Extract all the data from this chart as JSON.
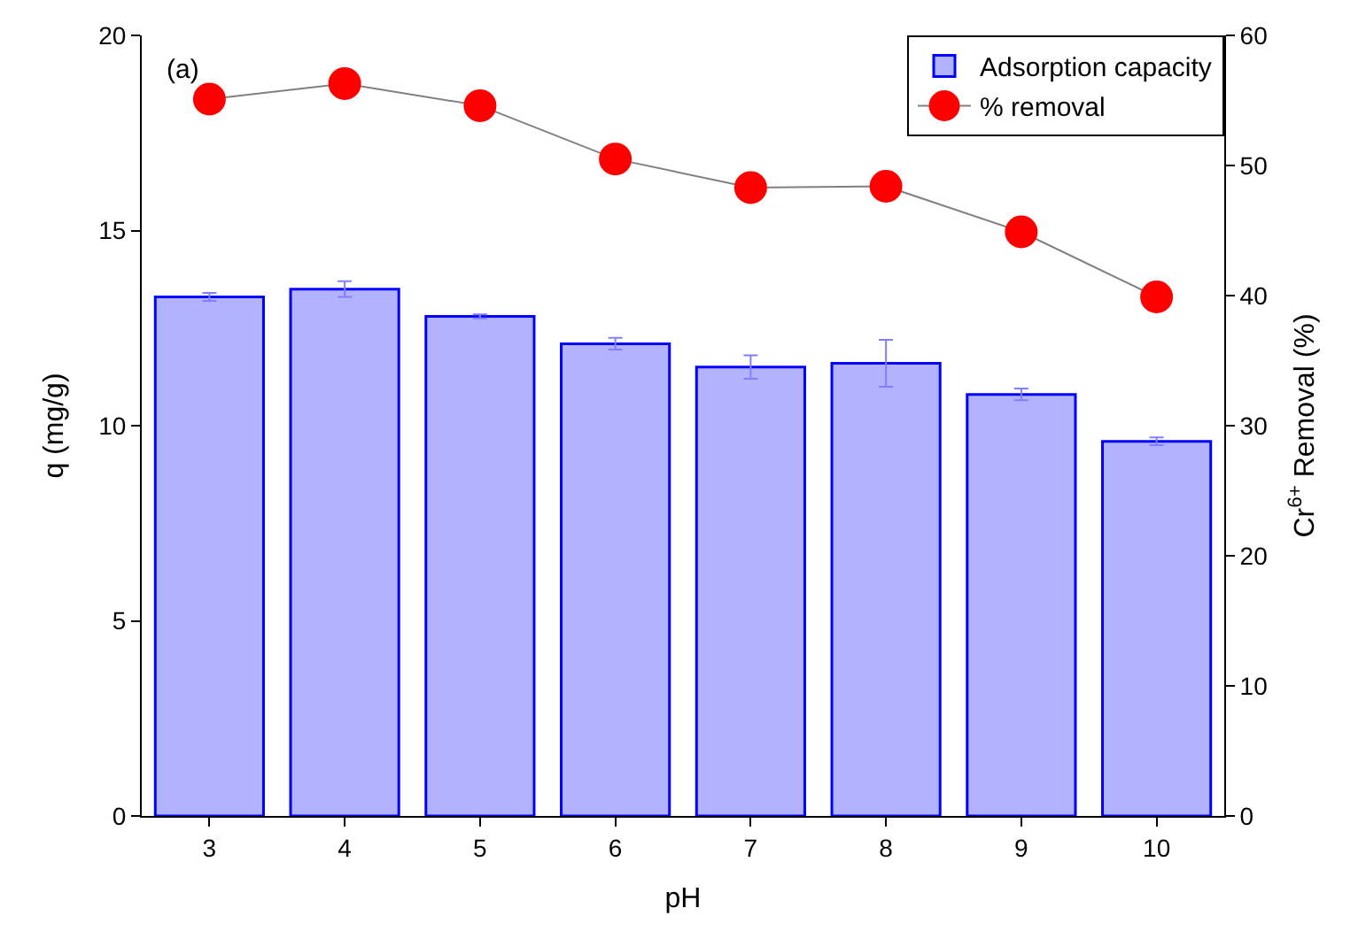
{
  "chart_data": {
    "type": "bar",
    "xlabel": "pH",
    "ylabel": "q (mg/g)",
    "y2label": "Cr$^{6+}$ Removal (%)",
    "annotations": [
      "(a)"
    ],
    "categories": [
      "3",
      "4",
      "5",
      "6",
      "7",
      "8",
      "9",
      "10"
    ],
    "series": [
      {
        "name": "Adsorption capacity",
        "color": "#0000ff",
        "values": [
          13.3,
          13.5,
          12.8,
          12.1,
          11.5,
          11.6,
          10.8,
          9.6
        ],
        "errors": [
          0.1,
          0.2,
          0.05,
          0.15,
          0.3,
          0.6,
          0.15,
          0.1
        ]
      },
      {
        "name": "% removal",
        "type": "line",
        "axis": "y2",
        "color": "#ff0000",
        "marker": "circle",
        "values": [
          55.1,
          56.3,
          54.6,
          50.5,
          48.3,
          48.4,
          44.9,
          39.9
        ]
      }
    ],
    "ylim": [
      0,
      20
    ],
    "yticks": [
      0,
      5,
      10,
      15,
      20
    ],
    "y2lim": [
      0,
      60
    ],
    "y2ticks": [
      0,
      10,
      20,
      30,
      40,
      50,
      60
    ],
    "legend": "top right"
  }
}
